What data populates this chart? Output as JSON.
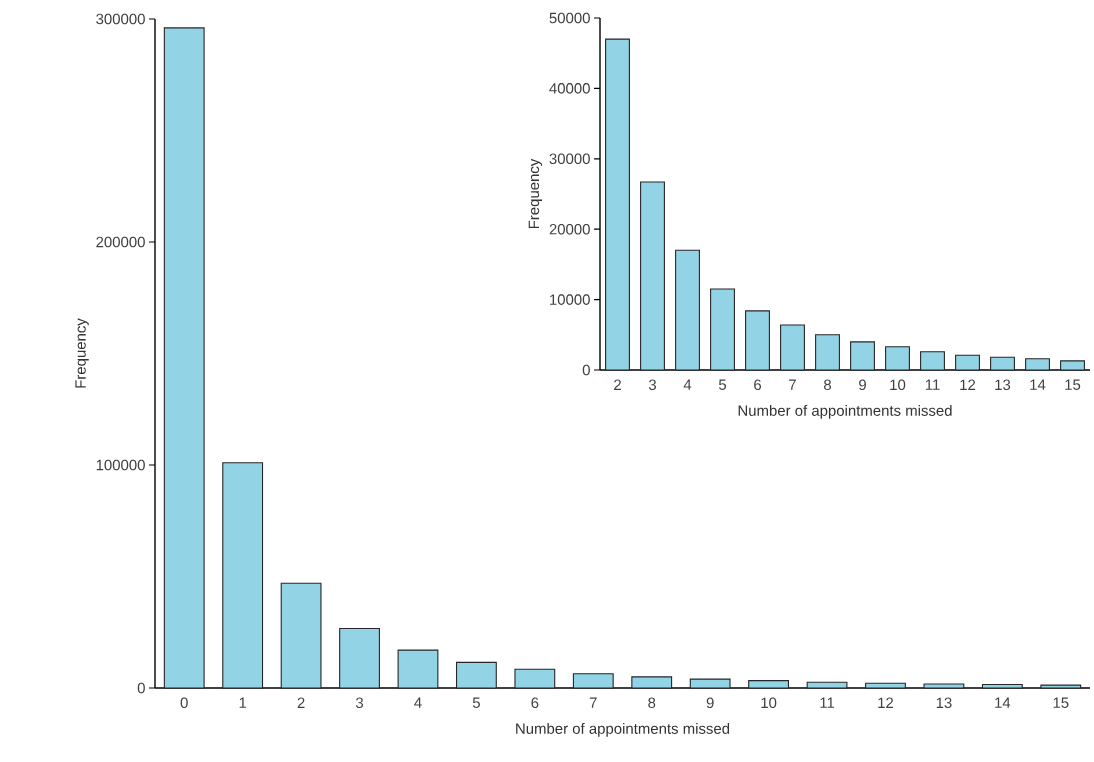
{
  "chart_data": [
    {
      "type": "bar",
      "xlabel": "Number of appointments missed",
      "ylabel": "Frequency",
      "categories": [
        "0",
        "1",
        "2",
        "3",
        "4",
        "5",
        "6",
        "7",
        "8",
        "9",
        "10",
        "11",
        "12",
        "13",
        "14",
        "15"
      ],
      "values": [
        296000,
        101000,
        47000,
        26700,
        17000,
        11500,
        8400,
        6400,
        5000,
        4000,
        3300,
        2600,
        2100,
        1800,
        1600,
        1300
      ],
      "color": "#93d3e6",
      "ylim": [
        0,
        300000
      ],
      "yticks": [
        0,
        100000,
        200000,
        300000
      ],
      "grid": false
    },
    {
      "type": "bar",
      "xlabel": "Number of appointments missed",
      "ylabel": "Frequency",
      "categories": [
        "2",
        "3",
        "4",
        "5",
        "6",
        "7",
        "8",
        "9",
        "10",
        "11",
        "12",
        "13",
        "14",
        "15"
      ],
      "values": [
        47000,
        26700,
        17000,
        11500,
        8400,
        6400,
        5000,
        4000,
        3300,
        2600,
        2100,
        1800,
        1600,
        1300
      ],
      "color": "#93d3e6",
      "ylim": [
        0,
        50000
      ],
      "yticks": [
        0,
        10000,
        20000,
        30000,
        40000,
        50000
      ],
      "grid": false
    }
  ]
}
